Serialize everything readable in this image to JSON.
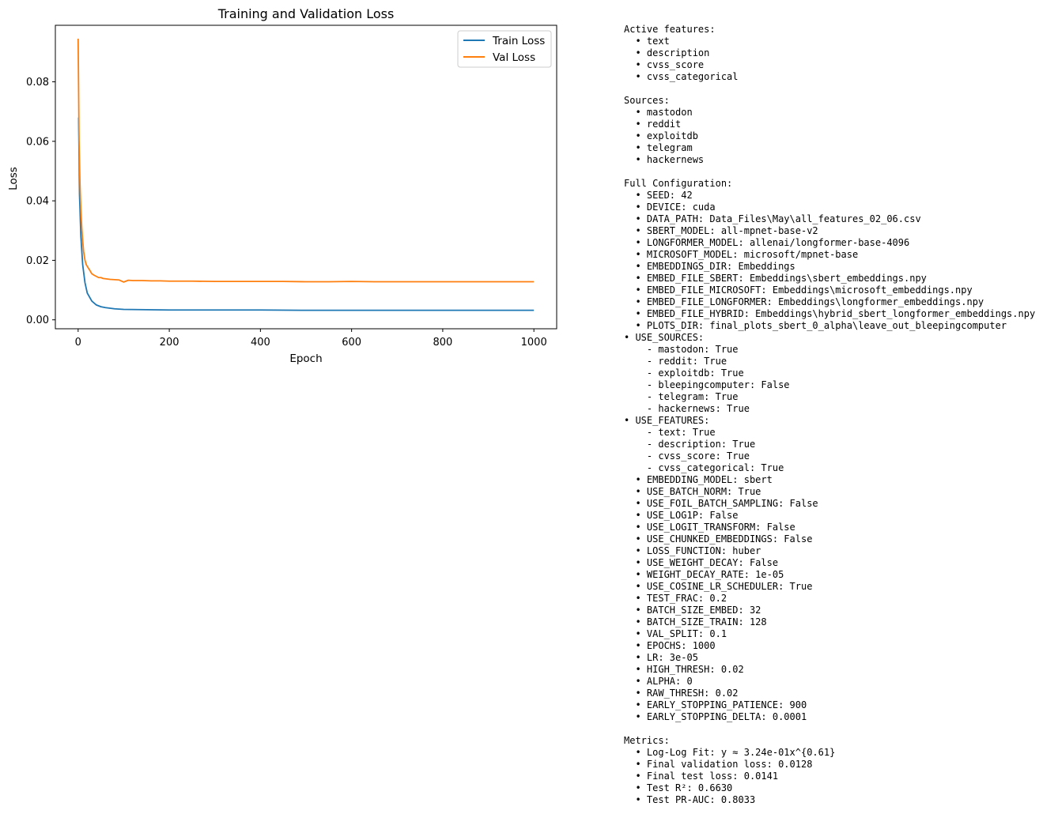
{
  "chart_data": {
    "type": "line",
    "title": "Training and Validation Loss",
    "xlabel": "Epoch",
    "ylabel": "Loss",
    "xlim": [
      -50,
      1050
    ],
    "ylim": [
      -0.003,
      0.099
    ],
    "xticks": [
      0,
      200,
      400,
      600,
      800,
      1000
    ],
    "xtick_labels": [
      "0",
      "200",
      "400",
      "600",
      "800",
      "1000"
    ],
    "yticks": [
      0.0,
      0.02,
      0.04,
      0.06,
      0.08
    ],
    "ytick_labels": [
      "0.00",
      "0.02",
      "0.04",
      "0.06",
      "0.08"
    ],
    "grid": false,
    "legend_position": "top-right",
    "series": [
      {
        "name": "Train Loss",
        "color": "#1f77b4",
        "x": [
          1,
          3,
          6,
          10,
          15,
          20,
          30,
          40,
          50,
          60,
          80,
          100,
          150,
          200,
          300,
          400,
          500,
          600,
          700,
          800,
          900,
          1000
        ],
        "values": [
          0.068,
          0.042,
          0.028,
          0.0185,
          0.0125,
          0.009,
          0.0063,
          0.005,
          0.0044,
          0.0041,
          0.0037,
          0.0035,
          0.0034,
          0.0033,
          0.0033,
          0.0033,
          0.0032,
          0.0032,
          0.0032,
          0.0032,
          0.0032,
          0.0032
        ]
      },
      {
        "name": "Val Loss",
        "color": "#ff7f0e",
        "x": [
          0,
          1,
          2,
          4,
          6,
          8,
          10,
          12,
          15,
          18,
          20,
          22,
          25,
          28,
          30,
          35,
          40,
          45,
          50,
          55,
          60,
          70,
          80,
          90,
          100,
          110,
          120,
          140,
          160,
          180,
          200,
          250,
          300,
          350,
          400,
          450,
          500,
          550,
          600,
          650,
          700,
          750,
          800,
          850,
          900,
          950,
          1000
        ],
        "values": [
          0.0945,
          0.078,
          0.06,
          0.046,
          0.037,
          0.031,
          0.0265,
          0.023,
          0.02,
          0.0185,
          0.018,
          0.0175,
          0.0168,
          0.016,
          0.0155,
          0.015,
          0.0146,
          0.0142,
          0.0142,
          0.0139,
          0.0138,
          0.0136,
          0.0135,
          0.0134,
          0.0127,
          0.0133,
          0.0132,
          0.0132,
          0.0131,
          0.0131,
          0.013,
          0.013,
          0.0129,
          0.0129,
          0.0129,
          0.0129,
          0.0128,
          0.0128,
          0.0129,
          0.0128,
          0.0128,
          0.0128,
          0.0128,
          0.0128,
          0.0128,
          0.0128,
          0.0128
        ]
      }
    ]
  },
  "panel_lines": [
    "Active features:",
    "  • text",
    "  • description",
    "  • cvss_score",
    "  • cvss_categorical",
    "",
    "Sources:",
    "  • mastodon",
    "  • reddit",
    "  • exploitdb",
    "  • telegram",
    "  • hackernews",
    "",
    "Full Configuration:",
    "  • SEED: 42",
    "  • DEVICE: cuda",
    "  • DATA_PATH: Data_Files\\May\\all_features_02_06.csv",
    "  • SBERT_MODEL: all-mpnet-base-v2",
    "  • LONGFORMER_MODEL: allenai/longformer-base-4096",
    "  • MICROSOFT_MODEL: microsoft/mpnet-base",
    "  • EMBEDDINGS_DIR: Embeddings",
    "  • EMBED_FILE_SBERT: Embeddings\\sbert_embeddings.npy",
    "  • EMBED_FILE_MICROSOFT: Embeddings\\microsoft_embeddings.npy",
    "  • EMBED_FILE_LONGFORMER: Embeddings\\longformer_embeddings.npy",
    "  • EMBED_FILE_HYBRID: Embeddings\\hybrid_sbert_longformer_embeddings.npy",
    "  • PLOTS_DIR: final_plots_sbert_0_alpha\\leave_out_bleepingcomputer",
    "• USE_SOURCES:",
    "    - mastodon: True",
    "    - reddit: True",
    "    - exploitdb: True",
    "    - bleepingcomputer: False",
    "    - telegram: True",
    "    - hackernews: True",
    "• USE_FEATURES:",
    "    - text: True",
    "    - description: True",
    "    - cvss_score: True",
    "    - cvss_categorical: True",
    "  • EMBEDDING_MODEL: sbert",
    "  • USE_BATCH_NORM: True",
    "  • USE_FOIL_BATCH_SAMPLING: False",
    "  • USE_LOG1P: False",
    "  • USE_LOGIT_TRANSFORM: False",
    "  • USE_CHUNKED_EMBEDDINGS: False",
    "  • LOSS_FUNCTION: huber",
    "  • USE_WEIGHT_DECAY: False",
    "  • WEIGHT_DECAY_RATE: 1e-05",
    "  • USE_COSINE_LR_SCHEDULER: True",
    "  • TEST_FRAC: 0.2",
    "  • BATCH_SIZE_EMBED: 32",
    "  • BATCH_SIZE_TRAIN: 128",
    "  • VAL_SPLIT: 0.1",
    "  • EPOCHS: 1000",
    "  • LR: 3e-05",
    "  • HIGH_THRESH: 0.02",
    "  • ALPHA: 0",
    "  • RAW_THRESH: 0.02",
    "  • EARLY_STOPPING_PATIENCE: 900",
    "  • EARLY_STOPPING_DELTA: 0.0001",
    "",
    "Metrics:",
    "  • Log-Log Fit: y ≈ 3.24e-01x^{0.61}",
    "  • Final validation loss: 0.0128",
    "  • Final test loss: 0.0141",
    "  • Test R²: 0.6630",
    "  • Test PR-AUC: 0.8033"
  ]
}
